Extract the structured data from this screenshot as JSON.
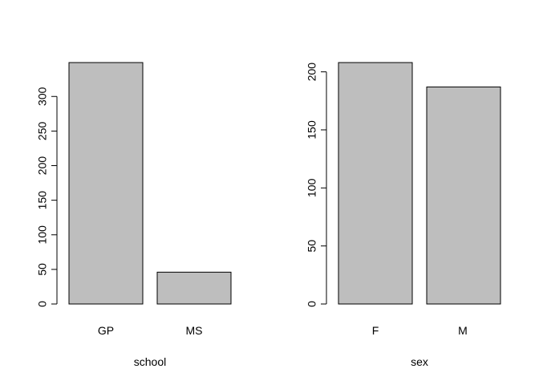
{
  "chart_data": [
    {
      "type": "bar",
      "categories": [
        "GP",
        "MS"
      ],
      "values": [
        349,
        46
      ],
      "xlabel": "school",
      "ylabel": "",
      "ylim": [
        0,
        349
      ],
      "yticks": [
        0,
        50,
        100,
        150,
        200,
        250,
        300
      ],
      "bar_color": "#bebebe",
      "grid": false
    },
    {
      "type": "bar",
      "categories": [
        "F",
        "M"
      ],
      "values": [
        208,
        187
      ],
      "xlabel": "sex",
      "ylabel": "",
      "ylim": [
        0,
        208
      ],
      "yticks": [
        0,
        50,
        100,
        150,
        200
      ],
      "bar_color": "#bebebe",
      "grid": false
    }
  ]
}
